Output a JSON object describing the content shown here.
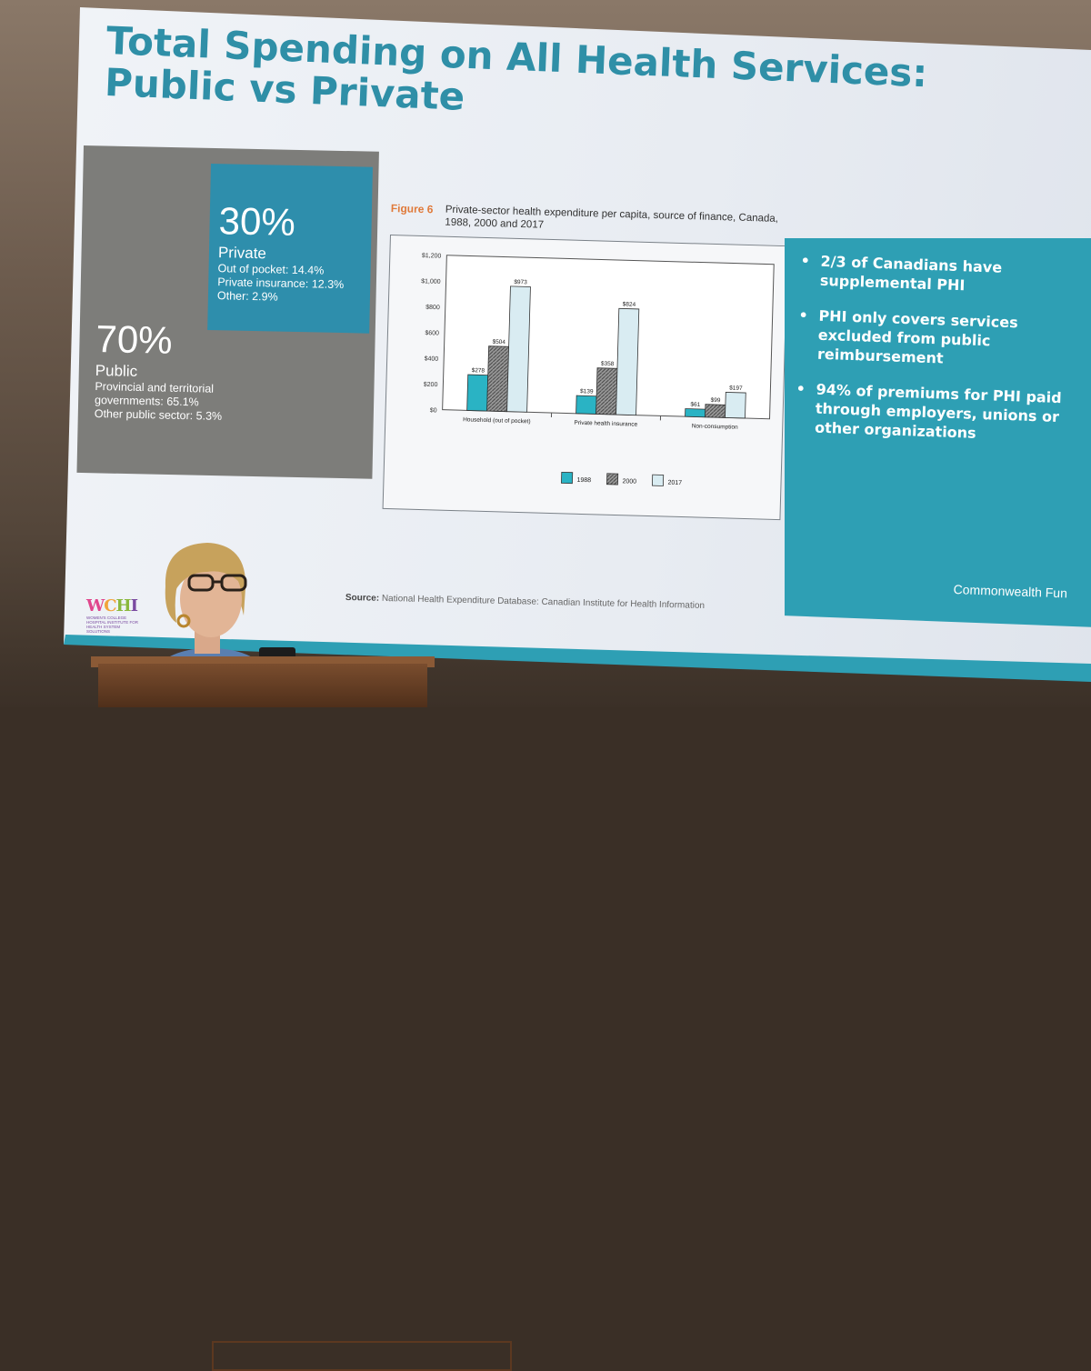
{
  "slide": {
    "title": "Total Spending on All Health Services: Public vs Private",
    "private_block": {
      "percent": "30%",
      "label": "Private",
      "details": [
        "Out of pocket: 14.4%",
        "Private insurance: 12.3%",
        "Other: 2.9%"
      ]
    },
    "public_block": {
      "percent": "70%",
      "label": "Public",
      "details": [
        "Provincial and territorial governments: 65.1%",
        "Other public sector: 5.3%"
      ]
    },
    "figure_label": "Figure 6",
    "figure_title": "Private-sector health expenditure per capita, source of finance, Canada, 1988, 2000 and 2017",
    "bullets": [
      "2/3 of Canadians have supplemental PHI",
      "PHI only covers services excluded from public reimbursement",
      "94% of premiums for PHI paid through employers, unions or other organizations"
    ],
    "credit": "Commonwealth Fun",
    "source_label": "Source:",
    "source_text": "National Health Expenditure Database: Canadian Institute for Health Information",
    "logo_text": "WCHI",
    "logo_sub": "WOMEN'S COLLEGE HOSPITAL INSTITUTE FOR HEALTH SYSTEM SOLUTIONS"
  },
  "colors": {
    "title": "#2f8fa7",
    "private_box": "#2e8eac",
    "public_block": "#7d7d7a",
    "panel": "#2e9fb4",
    "figure_label": "#e07a3a",
    "s1988": "#2ab3c4",
    "s2000": "#8a8a8a",
    "s2017": "#d9ecf2"
  },
  "chart_data": {
    "type": "bar",
    "categories": [
      "Household (out of pocket)",
      "Private health insurance",
      "Non-consumption"
    ],
    "series": [
      {
        "name": "1988",
        "values": [
          278,
          139,
          61
        ],
        "labels": [
          "$278",
          "$139",
          "$61"
        ]
      },
      {
        "name": "2000",
        "values": [
          504,
          358,
          99
        ],
        "labels": [
          "$504",
          "$358",
          "$99"
        ]
      },
      {
        "name": "2017",
        "values": [
          973,
          824,
          197
        ],
        "labels": [
          "$973",
          "$824",
          "$197"
        ]
      }
    ],
    "yticks": [
      "$0",
      "$200",
      "$400",
      "$600",
      "$800",
      "$1,000",
      "$1,200"
    ],
    "ylim": [
      0,
      1200
    ],
    "legend_position": "bottom"
  }
}
